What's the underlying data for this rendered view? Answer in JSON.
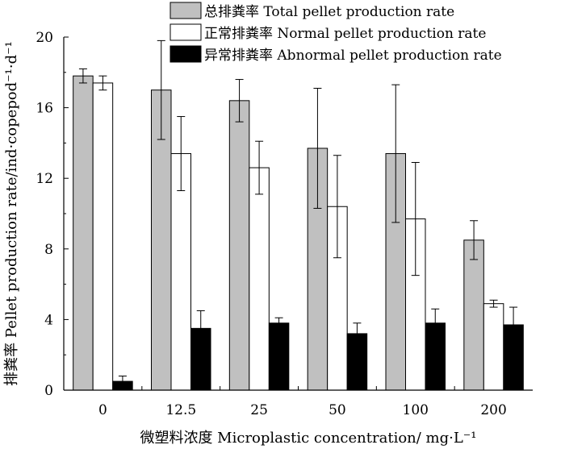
{
  "chart_data": {
    "type": "bar",
    "title": "",
    "xlabel": "微塑料浓度 Microplastic concentration/ mg·L⁻¹",
    "ylabel": "排粪率 Pellet production rate/ind·copepod⁻¹·d⁻¹",
    "categories": [
      "0",
      "12.5",
      "25",
      "50",
      "100",
      "200"
    ],
    "ylim": [
      0,
      20
    ],
    "yticks": [
      "0",
      "4",
      "8",
      "12",
      "16",
      "20"
    ],
    "grid": false,
    "legend_position": "top",
    "error_bars": true,
    "series": [
      {
        "name": "总排粪率 Total pellet production rate",
        "color": "#c0c0c0",
        "values": [
          17.8,
          17.0,
          16.4,
          13.7,
          13.4,
          8.5
        ],
        "errors": [
          0.4,
          2.8,
          1.2,
          3.4,
          3.9,
          1.1
        ]
      },
      {
        "name": "正常排粪率 Normal pellet production rate",
        "color": "#ffffff",
        "values": [
          17.4,
          13.4,
          12.6,
          10.4,
          9.7,
          4.9
        ],
        "errors": [
          0.4,
          2.1,
          1.5,
          2.9,
          3.2,
          0.2
        ]
      },
      {
        "name": "异常排粪率 Abnormal pellet production rate",
        "color": "#000000",
        "values": [
          0.5,
          3.5,
          3.8,
          3.2,
          3.8,
          3.7
        ],
        "errors": [
          0.3,
          1.0,
          0.3,
          0.6,
          0.8,
          1.0
        ]
      }
    ]
  }
}
